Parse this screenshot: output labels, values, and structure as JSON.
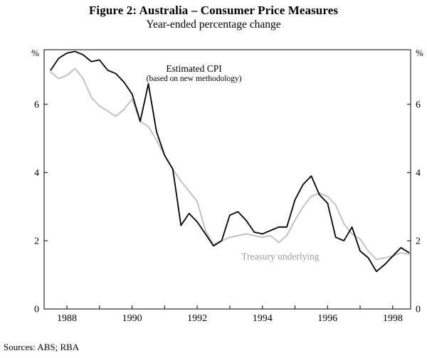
{
  "figure": {
    "title": "Figure 2: Australia – Consumer Price Measures",
    "subtitle": "Year-ended percentage change",
    "source": "Sources: ABS; RBA"
  },
  "chart_data": {
    "type": "line",
    "title": "Figure 2: Australia – Consumer Price Measures",
    "subtitle": "Year-ended percentage change",
    "unit": "%",
    "grid": false,
    "legend": "inline-annotations",
    "xlim": [
      1987.3,
      1998.55
    ],
    "ylim": [
      0,
      7.6
    ],
    "yticks": [
      0,
      2,
      4,
      6
    ],
    "xticks_labeled": [
      1988,
      1990,
      1992,
      1994,
      1996,
      1998
    ],
    "xticks_minor": [
      1988,
      1989,
      1990,
      1991,
      1992,
      1993,
      1994,
      1995,
      1996,
      1997,
      1998
    ],
    "x": [
      1987.5,
      1987.75,
      1988.0,
      1988.25,
      1988.5,
      1988.75,
      1989.0,
      1989.25,
      1989.5,
      1989.75,
      1990.0,
      1990.25,
      1990.5,
      1990.75,
      1991.0,
      1991.25,
      1991.5,
      1991.75,
      1992.0,
      1992.25,
      1992.5,
      1992.75,
      1993.0,
      1993.25,
      1993.5,
      1993.75,
      1994.0,
      1994.25,
      1994.5,
      1994.75,
      1995.0,
      1995.25,
      1995.5,
      1995.75,
      1996.0,
      1996.25,
      1996.5,
      1996.75,
      1997.0,
      1997.25,
      1997.5,
      1997.75,
      1998.0,
      1998.25,
      1998.5
    ],
    "series": [
      {
        "name": "Estimated CPI (based on new methodology)",
        "color": "#000000",
        "values": [
          7.0,
          7.35,
          7.5,
          7.55,
          7.45,
          7.25,
          7.3,
          7.0,
          6.9,
          6.65,
          6.3,
          5.5,
          6.6,
          5.2,
          4.5,
          4.1,
          2.45,
          2.8,
          2.55,
          2.2,
          1.85,
          2.0,
          2.75,
          2.85,
          2.6,
          2.25,
          2.2,
          2.3,
          2.4,
          2.4,
          3.2,
          3.65,
          3.9,
          3.35,
          3.1,
          2.1,
          2.0,
          2.4,
          1.7,
          1.5,
          1.1,
          1.3,
          1.55,
          1.8,
          1.65
        ]
      },
      {
        "name": "Treasury underlying",
        "color": "#bdbdbd",
        "values": [
          6.95,
          6.75,
          6.85,
          7.05,
          6.75,
          6.2,
          5.95,
          5.8,
          5.65,
          5.85,
          6.15,
          5.5,
          5.35,
          4.95,
          4.5,
          4.1,
          3.75,
          3.45,
          3.15,
          2.3,
          1.9,
          2.0,
          2.1,
          2.15,
          2.2,
          2.15,
          2.1,
          2.15,
          1.95,
          2.15,
          2.6,
          3.0,
          3.3,
          3.4,
          3.3,
          3.05,
          2.5,
          2.2,
          2.05,
          1.7,
          1.45,
          1.5,
          1.55,
          1.65,
          1.6
        ]
      }
    ],
    "annotations": [
      {
        "lines": [
          "Estimated CPI",
          "(based on new methodology)"
        ],
        "x": 1991.9,
        "y": 6.95,
        "color": "#000000"
      },
      {
        "lines": [
          "Treasury underlying"
        ],
        "x": 1994.55,
        "y": 1.45,
        "color": "#9c9c9c"
      }
    ]
  }
}
